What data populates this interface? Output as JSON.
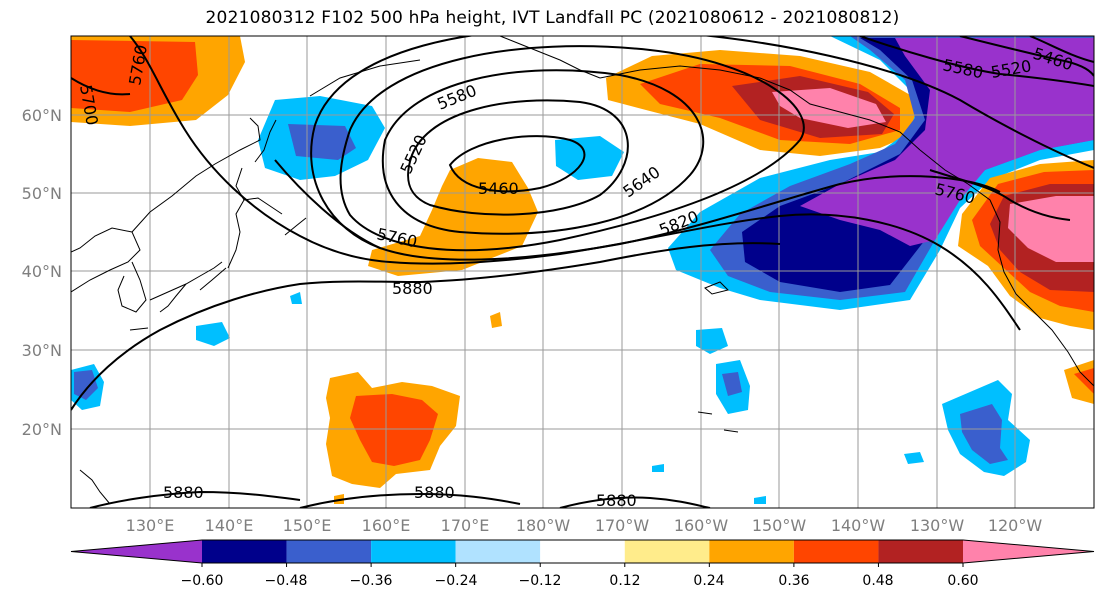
{
  "title": "2021080312 F102 500 hPa height, IVT Landfall PC (2021080612 - 2021080812)",
  "lat_labels": [
    "60°N",
    "50°N",
    "40°N",
    "30°N",
    "20°N"
  ],
  "lon_labels": [
    "130°E",
    "140°E",
    "150°E",
    "160°E",
    "170°E",
    "180°W",
    "170°W",
    "160°W",
    "150°W",
    "140°W",
    "130°W",
    "120°W"
  ],
  "contour_labels": [
    "5760",
    "5700",
    "5580",
    "5520",
    "5460",
    "5640",
    "5820",
    "5760",
    "5880",
    "5880",
    "5880",
    "5880",
    "5580",
    "5520",
    "5460",
    "5760"
  ],
  "colorbar": {
    "colors": [
      "#9932cc",
      "#00008b",
      "#3a5fcd",
      "#00bfff",
      "#b0e2ff",
      "#ffffff",
      "#ffec8b",
      "#ffa500",
      "#ff4500",
      "#b22222",
      "#ff82ab"
    ],
    "labels": [
      "−0.60",
      "−0.48",
      "−0.36",
      "−0.24",
      "−0.12",
      "0.12",
      "0.24",
      "0.36",
      "0.48",
      "0.60"
    ]
  }
}
